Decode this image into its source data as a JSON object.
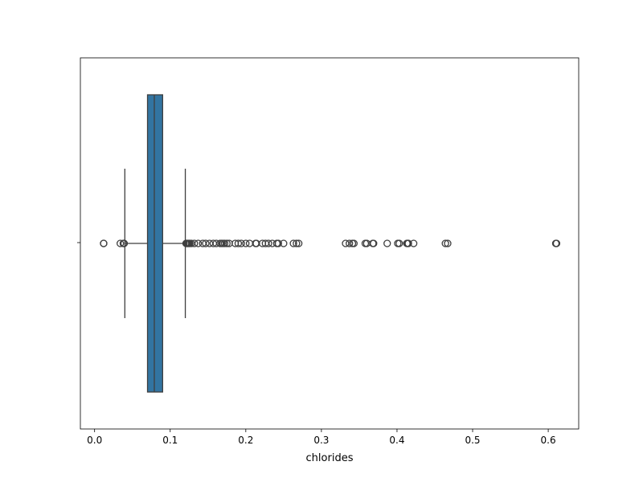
{
  "chart_data": {
    "type": "box",
    "orientation": "horizontal",
    "xlabel": "chlorides",
    "ylabel": "",
    "title": "",
    "xlim": [
      -0.0188,
      0.6403
    ],
    "xticks": [
      0.0,
      0.1,
      0.2,
      0.3,
      0.4,
      0.5,
      0.6
    ],
    "xtick_labels": [
      "0.0",
      "0.1",
      "0.2",
      "0.3",
      "0.4",
      "0.5",
      "0.6"
    ],
    "grid": false,
    "box": {
      "whisker_low": 0.04,
      "q1": 0.07,
      "median": 0.079,
      "q3": 0.09,
      "whisker_high": 0.12,
      "color": "#3274a1"
    },
    "outliers": [
      0.012,
      0.012,
      0.034,
      0.038,
      0.039,
      0.039,
      0.121,
      0.122,
      0.123,
      0.124,
      0.125,
      0.126,
      0.128,
      0.132,
      0.137,
      0.143,
      0.147,
      0.152,
      0.157,
      0.161,
      0.166,
      0.168,
      0.17,
      0.172,
      0.175,
      0.178,
      0.186,
      0.19,
      0.194,
      0.2,
      0.205,
      0.213,
      0.214,
      0.222,
      0.226,
      0.23,
      0.235,
      0.241,
      0.243,
      0.25,
      0.263,
      0.267,
      0.27,
      0.332,
      0.337,
      0.341,
      0.343,
      0.358,
      0.36,
      0.368,
      0.369,
      0.387,
      0.401,
      0.403,
      0.413,
      0.414,
      0.415,
      0.422,
      0.464,
      0.467,
      0.61,
      0.611
    ]
  }
}
